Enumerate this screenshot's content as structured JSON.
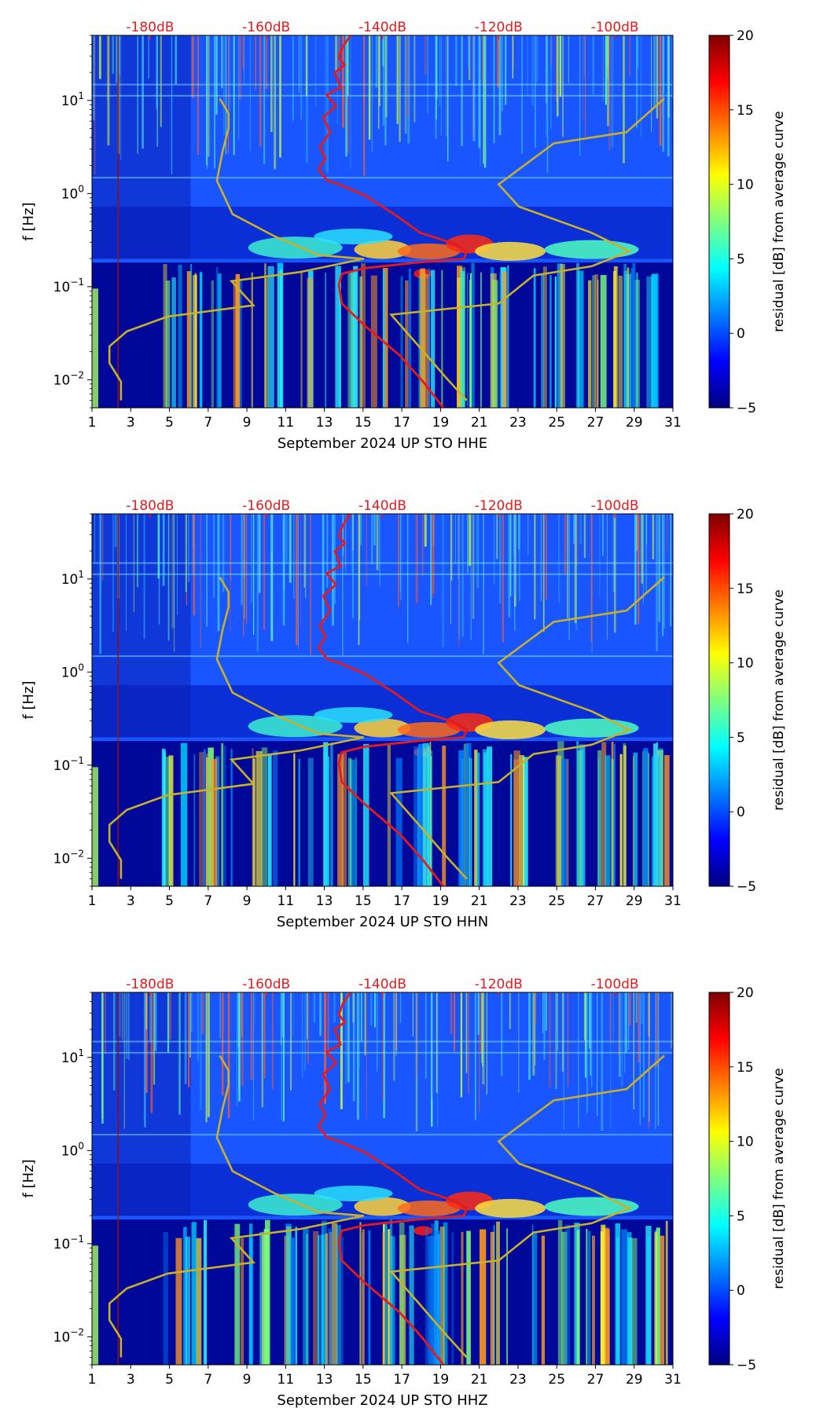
{
  "chart_data": [
    {
      "type": "heatmap",
      "xlabel": "September 2024 UP STO  HHE",
      "ylabel": "f [Hz]",
      "x_ticks": [
        "1",
        "3",
        "5",
        "7",
        "9",
        "11",
        "13",
        "15",
        "17",
        "19",
        "21",
        "23",
        "25",
        "27",
        "29",
        "31"
      ],
      "x_range": [
        1,
        31
      ],
      "y_range": [
        0.005,
        50
      ],
      "y_ticks": [
        {
          "base": "10",
          "exp": "1"
        },
        {
          "base": "10",
          "exp": "0"
        },
        {
          "base": "10",
          "exp": "−1"
        },
        {
          "base": "10",
          "exp": "−2"
        }
      ],
      "top_ticks": [
        "-180dB",
        "-160dB",
        "-140dB",
        "-120dB",
        "-100dB"
      ],
      "colorbar": {
        "label": "residual [dB] from average curve",
        "ticks": [
          "20",
          "15",
          "10",
          "5",
          "0",
          "−5"
        ],
        "range": [
          -5,
          20
        ]
      },
      "series": [
        {
          "name": "psd_curve",
          "color": "#e41a1c"
        },
        {
          "name": "noise_model",
          "color": "#c8b02a"
        }
      ]
    },
    {
      "type": "heatmap",
      "xlabel": "September 2024 UP STO  HHN",
      "ylabel": "f [Hz]",
      "x_ticks": [
        "1",
        "3",
        "5",
        "7",
        "9",
        "11",
        "13",
        "15",
        "17",
        "19",
        "21",
        "23",
        "25",
        "27",
        "29",
        "31"
      ],
      "x_range": [
        1,
        31
      ],
      "y_range": [
        0.005,
        50
      ],
      "y_ticks": [
        {
          "base": "10",
          "exp": "1"
        },
        {
          "base": "10",
          "exp": "0"
        },
        {
          "base": "10",
          "exp": "−1"
        },
        {
          "base": "10",
          "exp": "−2"
        }
      ],
      "top_ticks": [
        "-180dB",
        "-160dB",
        "-140dB",
        "-120dB",
        "-100dB"
      ],
      "colorbar": {
        "label": "residual [dB] from average curve",
        "ticks": [
          "20",
          "15",
          "10",
          "5",
          "0",
          "−5"
        ],
        "range": [
          -5,
          20
        ]
      },
      "series": [
        {
          "name": "psd_curve",
          "color": "#e41a1c"
        },
        {
          "name": "noise_model",
          "color": "#c8b02a"
        }
      ]
    },
    {
      "type": "heatmap",
      "xlabel": "September 2024 UP STO  HHZ",
      "ylabel": "f [Hz]",
      "x_ticks": [
        "1",
        "3",
        "5",
        "7",
        "9",
        "11",
        "13",
        "15",
        "17",
        "19",
        "21",
        "23",
        "25",
        "27",
        "29",
        "31"
      ],
      "x_range": [
        1,
        31
      ],
      "y_range": [
        0.005,
        50
      ],
      "y_ticks": [
        {
          "base": "10",
          "exp": "1"
        },
        {
          "base": "10",
          "exp": "0"
        },
        {
          "base": "10",
          "exp": "−1"
        },
        {
          "base": "10",
          "exp": "−2"
        }
      ],
      "top_ticks": [
        "-180dB",
        "-160dB",
        "-140dB",
        "-120dB",
        "-100dB"
      ],
      "colorbar": {
        "label": "residual [dB] from average curve",
        "ticks": [
          "20",
          "15",
          "10",
          "5",
          "0",
          "−5"
        ],
        "range": [
          -5,
          20
        ]
      },
      "series": [
        {
          "name": "psd_curve",
          "color": "#e41a1c"
        },
        {
          "name": "noise_model",
          "color": "#c8b02a"
        }
      ]
    }
  ]
}
